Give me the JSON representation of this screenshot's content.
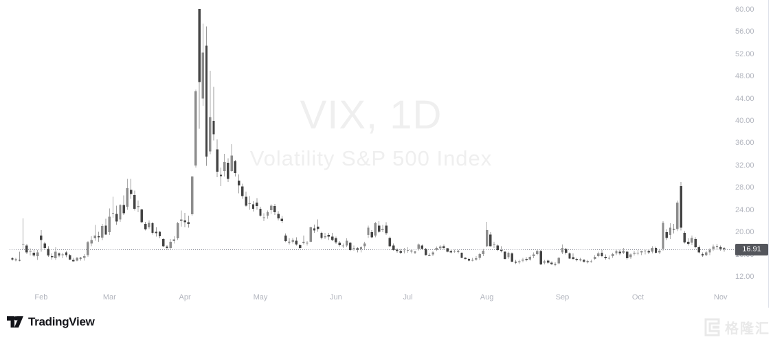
{
  "watermark": {
    "title": "VIX, 1D",
    "subtitle": "Volatility S&P 500 Index"
  },
  "price_line": {
    "value": 16.91,
    "label": "16.91"
  },
  "price_axis": {
    "labels": [
      "60.00",
      "56.00",
      "52.00",
      "48.00",
      "44.00",
      "40.00",
      "36.00",
      "32.00",
      "28.00",
      "24.00",
      "20.00",
      "16.00",
      "12.00"
    ],
    "values": [
      60,
      56,
      52,
      48,
      44,
      40,
      36,
      32,
      28,
      24,
      20,
      16,
      12
    ]
  },
  "branding": {
    "attribution": "TradingView",
    "logo_icon": "tradingview-icon",
    "watermark_text": "格隆汇",
    "watermark_icon": "gelonghui-icon"
  },
  "colors": {
    "up_candle": "#8c8c8c",
    "down_candle": "#434343",
    "up_wick": "#ababab",
    "down_wick": "#9a9a9a",
    "axis_text": "#b2b5be",
    "price_badge_bg": "#54565c",
    "price_badge_text": "#ffffff",
    "price_line": "#9598a1",
    "border": "#e0e3eb",
    "watermark_text": "#efefef",
    "logo_text": "#14151a",
    "footer_watermark": "#e9e9e9"
  },
  "chart_data": {
    "type": "candlestick",
    "symbol": "VIX",
    "interval": "1D",
    "title": "VIX, 1D",
    "description": "Volatility S&P 500 Index",
    "last_price": 16.91,
    "ylim": [
      11.5,
      61
    ],
    "grid": false,
    "y_tick_step": 4,
    "months": [
      {
        "label": "Feb",
        "candle_index": 8
      },
      {
        "label": "Mar",
        "candle_index": 27
      },
      {
        "label": "Apr",
        "candle_index": 48
      },
      {
        "label": "May",
        "candle_index": 69
      },
      {
        "label": "Jun",
        "candle_index": 90
      },
      {
        "label": "Jul",
        "candle_index": 110
      },
      {
        "label": "Aug",
        "candle_index": 132
      },
      {
        "label": "Sep",
        "candle_index": 153
      },
      {
        "label": "Oct",
        "candle_index": 174
      },
      {
        "label": "Nov",
        "candle_index": 197
      }
    ],
    "candles_format": [
      "date",
      "open",
      "high",
      "low",
      "close"
    ],
    "candles": [
      [
        "01-22",
        15.3,
        15.6,
        14.9,
        15.1
      ],
      [
        "01-23",
        15.1,
        15.4,
        14.8,
        15.0
      ],
      [
        "01-24",
        15.0,
        16.5,
        14.8,
        14.9
      ],
      [
        "01-27",
        17.9,
        22.5,
        16.9,
        17.9
      ],
      [
        "01-28",
        17.6,
        17.9,
        16.1,
        16.4
      ],
      [
        "01-29",
        16.6,
        17.1,
        15.8,
        16.6
      ],
      [
        "01-30",
        16.3,
        16.9,
        15.6,
        15.8
      ],
      [
        "01-31",
        15.7,
        16.8,
        15.0,
        16.4
      ],
      [
        "02-03",
        19.4,
        20.4,
        16.5,
        18.6
      ],
      [
        "02-04",
        18.0,
        18.3,
        16.8,
        17.2
      ],
      [
        "02-05",
        17.0,
        17.5,
        15.6,
        15.8
      ],
      [
        "02-06",
        15.7,
        16.2,
        15.1,
        15.5
      ],
      [
        "02-07",
        15.3,
        17.3,
        15.0,
        16.5
      ],
      [
        "02-10",
        16.2,
        16.4,
        15.5,
        15.8
      ],
      [
        "02-11",
        16.0,
        16.3,
        15.3,
        16.0
      ],
      [
        "02-12",
        16.4,
        16.6,
        15.5,
        15.9
      ],
      [
        "02-13",
        15.9,
        16.1,
        15.0,
        15.1
      ],
      [
        "02-14",
        15.0,
        15.4,
        14.7,
        14.8
      ],
      [
        "02-18",
        14.9,
        15.6,
        14.8,
        15.4
      ],
      [
        "02-19",
        15.4,
        15.6,
        14.9,
        15.3
      ],
      [
        "02-20",
        15.4,
        16.1,
        14.9,
        15.7
      ],
      [
        "02-21",
        15.9,
        18.4,
        15.6,
        18.2
      ],
      [
        "02-24",
        18.0,
        19.3,
        17.5,
        18.6
      ],
      [
        "02-25",
        18.9,
        21.3,
        18.5,
        19.4
      ],
      [
        "02-26",
        19.3,
        20.1,
        18.3,
        19.1
      ],
      [
        "02-27",
        19.0,
        21.5,
        18.6,
        21.1
      ],
      [
        "02-28",
        21.2,
        22.4,
        19.5,
        19.6
      ],
      [
        "03-03",
        20.0,
        24.3,
        19.5,
        22.8
      ],
      [
        "03-04",
        23.4,
        26.4,
        22.6,
        23.5
      ],
      [
        "03-05",
        23.3,
        24.8,
        21.3,
        21.9
      ],
      [
        "03-06",
        22.3,
        25.0,
        21.9,
        24.9
      ],
      [
        "03-07",
        24.9,
        26.6,
        23.1,
        23.4
      ],
      [
        "03-10",
        24.6,
        29.6,
        24.0,
        27.9
      ],
      [
        "03-11",
        27.6,
        29.6,
        26.0,
        26.9
      ],
      [
        "03-12",
        26.7,
        27.5,
        23.9,
        24.2
      ],
      [
        "03-13",
        24.5,
        25.7,
        23.6,
        24.7
      ],
      [
        "03-14",
        24.1,
        24.2,
        21.6,
        21.8
      ],
      [
        "03-17",
        21.5,
        21.9,
        20.3,
        20.5
      ],
      [
        "03-18",
        20.9,
        22.1,
        20.6,
        21.7
      ],
      [
        "03-19",
        21.6,
        21.9,
        19.6,
        19.9
      ],
      [
        "03-20",
        20.1,
        20.9,
        19.2,
        19.8
      ],
      [
        "03-21",
        20.1,
        20.2,
        18.9,
        19.3
      ],
      [
        "03-24",
        18.8,
        18.9,
        17.3,
        17.5
      ],
      [
        "03-25",
        17.4,
        17.7,
        16.8,
        17.2
      ],
      [
        "03-26",
        17.2,
        18.8,
        16.9,
        18.3
      ],
      [
        "03-27",
        18.4,
        19.3,
        18.0,
        18.7
      ],
      [
        "03-28",
        18.9,
        21.9,
        18.6,
        21.6
      ],
      [
        "03-31",
        22.0,
        23.9,
        21.0,
        22.3
      ],
      [
        "04-01",
        22.1,
        23.5,
        20.9,
        21.8
      ],
      [
        "04-02",
        21.8,
        23.0,
        20.8,
        21.5
      ],
      [
        "04-03",
        23.2,
        30.1,
        23.0,
        30.0
      ],
      [
        "04-04",
        32.0,
        45.6,
        31.6,
        45.3
      ],
      [
        "04-07",
        60.1,
        60.1,
        38.6,
        47.0
      ],
      [
        "04-08",
        44.0,
        57.5,
        42.7,
        52.3
      ],
      [
        "04-09",
        53.5,
        57.0,
        31.9,
        33.6
      ],
      [
        "04-10",
        34.5,
        49.0,
        34.0,
        40.7
      ],
      [
        "04-11",
        40.0,
        46.1,
        36.5,
        37.6
      ],
      [
        "04-14",
        34.9,
        36.7,
        29.9,
        30.9
      ],
      [
        "04-15",
        30.3,
        31.6,
        28.3,
        30.1
      ],
      [
        "04-16",
        31.0,
        34.1,
        30.0,
        32.6
      ],
      [
        "04-17",
        32.5,
        33.3,
        29.0,
        29.6
      ],
      [
        "04-21",
        31.0,
        35.8,
        30.9,
        33.8
      ],
      [
        "04-22",
        32.8,
        33.0,
        30.0,
        30.6
      ],
      [
        "04-23",
        29.3,
        30.4,
        27.0,
        28.4
      ],
      [
        "04-24",
        28.2,
        28.7,
        26.0,
        26.5
      ],
      [
        "04-25",
        26.4,
        27.3,
        24.6,
        24.8
      ],
      [
        "04-28",
        25.1,
        26.5,
        24.0,
        25.2
      ],
      [
        "04-29",
        25.0,
        25.6,
        23.7,
        24.2
      ],
      [
        "04-30",
        25.3,
        26.1,
        24.0,
        24.7
      ],
      [
        "05-01",
        24.2,
        24.6,
        22.8,
        23.0
      ],
      [
        "05-02",
        22.7,
        23.4,
        22.0,
        22.7
      ],
      [
        "05-05",
        23.0,
        23.9,
        22.4,
        23.6
      ],
      [
        "05-06",
        24.0,
        25.0,
        23.3,
        24.8
      ],
      [
        "05-07",
        24.7,
        25.1,
        23.1,
        23.6
      ],
      [
        "05-08",
        23.3,
        23.8,
        22.1,
        22.5
      ],
      [
        "05-09",
        22.4,
        22.9,
        21.6,
        22.0
      ],
      [
        "05-12",
        19.4,
        19.8,
        18.2,
        18.4
      ],
      [
        "05-13",
        18.3,
        18.9,
        17.8,
        18.2
      ],
      [
        "05-14",
        18.3,
        19.0,
        18.0,
        18.6
      ],
      [
        "05-15",
        18.5,
        19.1,
        17.6,
        17.8
      ],
      [
        "05-16",
        17.7,
        17.9,
        17.0,
        17.2
      ],
      [
        "05-19",
        18.2,
        19.4,
        17.8,
        18.1
      ],
      [
        "05-20",
        18.0,
        18.4,
        17.6,
        18.1
      ],
      [
        "05-21",
        18.3,
        21.0,
        18.2,
        20.9
      ],
      [
        "05-22",
        20.7,
        21.4,
        19.9,
        20.3
      ],
      [
        "05-23",
        21.0,
        22.3,
        20.1,
        20.6
      ],
      [
        "05-27",
        19.9,
        20.1,
        18.7,
        19.0
      ],
      [
        "05-28",
        19.1,
        19.9,
        18.8,
        19.3
      ],
      [
        "05-29",
        19.5,
        19.9,
        18.6,
        19.2
      ],
      [
        "05-30",
        19.2,
        19.9,
        18.4,
        18.6
      ],
      [
        "06-02",
        18.9,
        19.2,
        17.9,
        18.2
      ],
      [
        "06-03",
        18.1,
        18.4,
        17.4,
        17.7
      ],
      [
        "06-04",
        17.6,
        18.0,
        17.2,
        17.6
      ],
      [
        "06-05",
        17.6,
        18.9,
        17.3,
        18.5
      ],
      [
        "06-06",
        18.1,
        18.2,
        16.6,
        16.8
      ],
      [
        "06-09",
        17.0,
        17.6,
        16.7,
        17.2
      ],
      [
        "06-10",
        17.1,
        17.3,
        16.4,
        16.9
      ],
      [
        "06-11",
        16.9,
        17.5,
        16.4,
        17.3
      ],
      [
        "06-12",
        17.5,
        18.3,
        17.0,
        18.0
      ],
      [
        "06-13",
        19.5,
        21.2,
        19.0,
        20.8
      ],
      [
        "06-16",
        20.0,
        20.4,
        18.9,
        19.1
      ],
      [
        "06-17",
        19.4,
        21.9,
        19.1,
        21.6
      ],
      [
        "06-18",
        21.2,
        22.0,
        19.9,
        20.1
      ],
      [
        "06-20",
        20.4,
        21.3,
        20.0,
        20.6
      ],
      [
        "06-23",
        21.2,
        21.8,
        19.5,
        19.8
      ],
      [
        "06-24",
        19.0,
        19.2,
        17.3,
        17.5
      ],
      [
        "06-25",
        17.6,
        18.0,
        16.7,
        16.8
      ],
      [
        "06-26",
        16.9,
        17.1,
        16.3,
        16.6
      ],
      [
        "06-27",
        16.6,
        17.0,
        16.1,
        16.3
      ],
      [
        "06-30",
        16.6,
        17.2,
        16.2,
        16.7
      ],
      [
        "07-01",
        16.8,
        17.3,
        16.3,
        16.8
      ],
      [
        "07-02",
        16.7,
        16.9,
        16.2,
        16.6
      ],
      [
        "07-03",
        16.5,
        16.6,
        16.1,
        16.4
      ],
      [
        "07-07",
        17.0,
        18.0,
        16.7,
        17.8
      ],
      [
        "07-08",
        17.6,
        17.8,
        16.8,
        17.0
      ],
      [
        "07-09",
        17.0,
        17.2,
        15.8,
        15.9
      ],
      [
        "07-10",
        15.9,
        16.2,
        15.7,
        15.8
      ],
      [
        "07-11",
        16.0,
        16.6,
        15.7,
        16.4
      ],
      [
        "07-14",
        16.8,
        17.4,
        16.6,
        17.2
      ],
      [
        "07-15",
        17.1,
        17.7,
        16.9,
        17.4
      ],
      [
        "07-16",
        17.5,
        17.8,
        16.9,
        17.2
      ],
      [
        "07-17",
        17.1,
        17.2,
        16.4,
        16.5
      ],
      [
        "07-18",
        16.6,
        16.9,
        16.2,
        16.4
      ],
      [
        "07-21",
        16.5,
        16.9,
        16.3,
        16.6
      ],
      [
        "07-22",
        16.6,
        16.8,
        16.2,
        16.5
      ],
      [
        "07-23",
        16.3,
        16.4,
        15.3,
        15.4
      ],
      [
        "07-24",
        15.4,
        15.6,
        15.0,
        15.2
      ],
      [
        "07-25",
        15.2,
        15.4,
        14.8,
        14.9
      ],
      [
        "07-28",
        15.0,
        15.4,
        14.8,
        15.0
      ],
      [
        "07-29",
        15.1,
        15.7,
        14.9,
        15.3
      ],
      [
        "07-30",
        15.4,
        16.3,
        15.0,
        16.1
      ],
      [
        "07-31",
        16.1,
        17.0,
        15.7,
        16.7
      ],
      [
        "08-01",
        17.5,
        21.9,
        17.3,
        20.4
      ],
      [
        "08-04",
        19.6,
        20.0,
        17.4,
        17.5
      ],
      [
        "08-05",
        17.7,
        18.3,
        17.2,
        17.8
      ],
      [
        "08-06",
        17.6,
        17.8,
        16.6,
        16.8
      ],
      [
        "08-07",
        16.8,
        17.5,
        16.4,
        16.6
      ],
      [
        "08-08",
        16.5,
        16.6,
        15.1,
        15.2
      ],
      [
        "08-11",
        15.5,
        16.5,
        15.2,
        16.3
      ],
      [
        "08-12",
        16.2,
        16.4,
        14.6,
        14.7
      ],
      [
        "08-13",
        14.7,
        15.0,
        14.3,
        14.5
      ],
      [
        "08-14",
        14.6,
        15.1,
        14.3,
        14.8
      ],
      [
        "08-15",
        14.9,
        15.4,
        14.6,
        15.1
      ],
      [
        "08-18",
        15.2,
        15.5,
        14.8,
        15.0
      ],
      [
        "08-19",
        15.1,
        15.8,
        14.9,
        15.6
      ],
      [
        "08-20",
        15.7,
        16.4,
        15.3,
        16.0
      ],
      [
        "08-21",
        16.1,
        16.9,
        15.9,
        16.6
      ],
      [
        "08-22",
        16.6,
        16.8,
        14.1,
        14.2
      ],
      [
        "08-25",
        14.5,
        15.0,
        14.2,
        14.8
      ],
      [
        "08-26",
        14.9,
        15.1,
        14.3,
        14.5
      ],
      [
        "08-27",
        14.5,
        14.8,
        14.1,
        14.3
      ],
      [
        "08-28",
        14.3,
        14.6,
        13.9,
        14.2
      ],
      [
        "08-29",
        14.4,
        15.6,
        14.2,
        15.4
      ],
      [
        "09-02",
        16.4,
        17.8,
        16.1,
        17.2
      ],
      [
        "09-03",
        17.0,
        17.2,
        16.0,
        16.3
      ],
      [
        "09-04",
        16.2,
        16.4,
        15.2,
        15.3
      ],
      [
        "09-05",
        15.5,
        16.2,
        15.0,
        15.2
      ],
      [
        "09-08",
        15.2,
        15.4,
        14.8,
        15.0
      ],
      [
        "09-09",
        15.1,
        15.4,
        14.8,
        15.0
      ],
      [
        "09-10",
        15.0,
        15.2,
        14.5,
        14.7
      ],
      [
        "09-11",
        14.8,
        15.0,
        14.4,
        14.7
      ],
      [
        "09-12",
        14.8,
        15.1,
        14.5,
        14.8
      ],
      [
        "09-15",
        15.2,
        15.9,
        15.0,
        15.6
      ],
      [
        "09-16",
        15.7,
        16.5,
        15.5,
        16.2
      ],
      [
        "09-17",
        16.3,
        16.8,
        15.5,
        15.7
      ],
      [
        "09-18",
        15.6,
        16.0,
        15.1,
        15.3
      ],
      [
        "09-19",
        15.4,
        15.8,
        15.1,
        15.4
      ],
      [
        "09-22",
        15.7,
        16.3,
        15.4,
        16.1
      ],
      [
        "09-23",
        16.2,
        16.9,
        15.9,
        16.6
      ],
      [
        "09-24",
        16.5,
        16.9,
        15.9,
        16.2
      ],
      [
        "09-25",
        16.3,
        17.2,
        16.1,
        16.7
      ],
      [
        "09-26",
        16.5,
        16.7,
        15.1,
        15.3
      ],
      [
        "09-29",
        15.5,
        16.2,
        15.2,
        16.0
      ],
      [
        "09-30",
        16.1,
        16.7,
        15.8,
        16.3
      ],
      [
        "10-01",
        16.3,
        16.8,
        15.9,
        16.3
      ],
      [
        "10-02",
        16.4,
        16.7,
        15.9,
        16.6
      ],
      [
        "10-03",
        16.6,
        16.9,
        16.0,
        16.7
      ],
      [
        "10-06",
        16.6,
        16.9,
        16.1,
        16.4
      ],
      [
        "10-07",
        16.5,
        17.5,
        16.2,
        17.2
      ],
      [
        "10-08",
        17.2,
        17.4,
        16.2,
        16.3
      ],
      [
        "10-09",
        16.4,
        17.0,
        16.1,
        16.7
      ],
      [
        "10-10",
        17.0,
        22.0,
        16.7,
        21.7
      ],
      [
        "10-13",
        20.0,
        20.5,
        18.6,
        19.0
      ],
      [
        "10-14",
        19.5,
        21.6,
        18.8,
        20.8
      ],
      [
        "10-15",
        20.6,
        21.5,
        19.8,
        20.5
      ],
      [
        "10-16",
        20.6,
        25.7,
        20.2,
        25.3
      ],
      [
        "10-17",
        28.3,
        29.0,
        20.3,
        20.8
      ],
      [
        "10-20",
        19.9,
        20.2,
        18.0,
        18.2
      ],
      [
        "10-21",
        18.3,
        18.9,
        17.6,
        17.9
      ],
      [
        "10-22",
        18.1,
        19.4,
        17.7,
        19.0
      ],
      [
        "10-23",
        18.8,
        19.1,
        17.1,
        17.3
      ],
      [
        "10-24",
        17.3,
        17.6,
        16.2,
        16.4
      ],
      [
        "10-27",
        16.1,
        16.4,
        15.6,
        15.8
      ],
      [
        "10-28",
        15.9,
        16.6,
        15.7,
        16.4
      ],
      [
        "10-29",
        16.4,
        17.1,
        15.9,
        16.9
      ],
      [
        "10-30",
        17.0,
        17.8,
        16.6,
        17.4
      ],
      [
        "10-31",
        17.5,
        17.9,
        16.9,
        17.4
      ],
      [
        "11-03",
        17.3,
        17.6,
        16.7,
        17.0
      ],
      [
        "11-04",
        17.1,
        17.3,
        16.5,
        16.91
      ]
    ]
  }
}
